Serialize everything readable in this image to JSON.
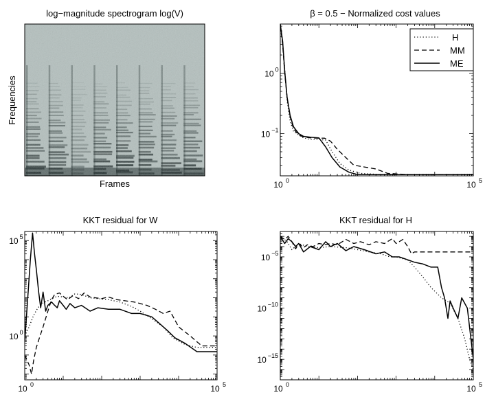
{
  "figure_title": "",
  "chart_data": [
    {
      "type": "heatmap",
      "title": "log−magnitude spectrogram log(V)",
      "xlabel": "Frames",
      "ylabel": "Frequencies",
      "note": "Grey-scale spectrogram; eight note onsets visible as vertical striations with dark low-frequency horizontal harmonic bands",
      "onsets": [
        0,
        1,
        2,
        3,
        4,
        5,
        6,
        7
      ],
      "colors": {
        "background": "#b6c2c0",
        "dark": "#1e2a2a"
      }
    },
    {
      "type": "line",
      "title": "β = 0.5 − Normalized cost values",
      "xscale": "log",
      "yscale": "log",
      "xlim": [
        1,
        100000
      ],
      "ylim": [
        0.02,
        6.5
      ],
      "xticks": [
        {
          "v": 1,
          "label": "10",
          "exp": "0"
        },
        {
          "v": 100000,
          "label": "10",
          "exp": "5"
        }
      ],
      "yticks": [
        {
          "v": 0.1,
          "label": "10",
          "exp": "−1"
        },
        {
          "v": 1,
          "label": "10",
          "exp": "0"
        }
      ],
      "legend": {
        "position": "top-right",
        "entries": [
          "H",
          "MM",
          "ME"
        ]
      },
      "series": [
        {
          "name": "H",
          "style": "dotted",
          "x": [
            1,
            1.15,
            1.3,
            1.5,
            1.8,
            2.2,
            3,
            4,
            6,
            9,
            15,
            22,
            35,
            60,
            120,
            400,
            2000,
            100000
          ],
          "y": [
            6.3,
            3.3,
            1.2,
            0.35,
            0.16,
            0.11,
            0.095,
            0.085,
            0.08,
            0.08,
            0.078,
            0.05,
            0.032,
            0.025,
            0.022,
            0.021,
            0.021,
            0.021
          ]
        },
        {
          "name": "MM",
          "style": "dashed",
          "x": [
            1,
            1.15,
            1.3,
            1.5,
            1.8,
            2.2,
            3,
            4,
            6,
            10,
            14,
            20,
            30,
            50,
            80,
            150,
            300,
            600,
            2000,
            100000
          ],
          "y": [
            6.2,
            3.0,
            1.0,
            0.4,
            0.19,
            0.12,
            0.095,
            0.088,
            0.085,
            0.084,
            0.084,
            0.075,
            0.055,
            0.04,
            0.03,
            0.028,
            0.026,
            0.022,
            0.021,
            0.021
          ]
        },
        {
          "name": "ME",
          "style": "solid",
          "x": [
            1,
            1.15,
            1.3,
            1.5,
            1.8,
            2.2,
            3,
            4,
            6,
            10,
            15,
            22,
            35,
            60,
            100,
            200,
            500,
            2000,
            100000
          ],
          "y": [
            6.5,
            3.4,
            1.1,
            0.4,
            0.2,
            0.13,
            0.1,
            0.09,
            0.087,
            0.085,
            0.06,
            0.04,
            0.028,
            0.023,
            0.021,
            0.021,
            0.021,
            0.021,
            0.021
          ]
        }
      ]
    },
    {
      "type": "line",
      "title": "KKT residual for W",
      "xscale": "log",
      "yscale": "log",
      "xlim": [
        1,
        100000
      ],
      "ylim": [
        0.005,
        300000
      ],
      "xticks": [
        {
          "v": 1,
          "label": "10",
          "exp": "0"
        },
        {
          "v": 100000,
          "label": "10",
          "exp": "5"
        }
      ],
      "yticks": [
        {
          "v": 1,
          "label": "10",
          "exp": "0"
        },
        {
          "v": 100000,
          "label": "10",
          "exp": "5"
        }
      ],
      "series": [
        {
          "name": "H",
          "style": "dotted",
          "x": [
            1,
            1.3,
            1.7,
            2.2,
            3,
            4,
            5,
            7,
            10,
            14,
            20,
            30,
            50,
            80,
            150,
            300,
            600,
            1000,
            2000,
            4000,
            7000,
            15000,
            30000,
            100000
          ],
          "y": [
            1,
            3,
            12,
            30,
            55,
            70,
            90,
            120,
            110,
            100,
            160,
            150,
            100,
            90,
            80,
            60,
            35,
            20,
            8,
            3,
            0.8,
            0.35,
            0.25,
            0.25
          ]
        },
        {
          "name": "MM",
          "style": "dashed",
          "x": [
            1,
            1.3,
            1.5,
            1.7,
            2,
            2.5,
            3,
            4,
            5,
            6,
            8,
            10,
            13,
            18,
            25,
            35,
            50,
            70,
            100,
            150,
            250,
            400,
            700,
            1000,
            1500,
            2500,
            4000,
            6000,
            10000,
            20000,
            40000,
            100000
          ],
          "y": [
            0.1,
            0.03,
            0.01,
            0.05,
            0.25,
            1,
            3,
            20,
            80,
            150,
            180,
            120,
            80,
            130,
            90,
            180,
            110,
            100,
            90,
            110,
            80,
            70,
            60,
            50,
            40,
            25,
            15,
            20,
            3,
            1,
            0.3,
            0.3
          ]
        },
        {
          "name": "ME",
          "style": "solid",
          "x": [
            1,
            1.2,
            1.4,
            1.6,
            1.8,
            2,
            2.3,
            2.6,
            3,
            3.5,
            4,
            5,
            6,
            7,
            8,
            10,
            12,
            15,
            20,
            30,
            50,
            80,
            150,
            300,
            600,
            1000,
            2000,
            3000,
            5000,
            8000,
            15000,
            30000,
            100000
          ],
          "y": [
            0.5,
            100,
            10000,
            250000,
            20000,
            3000,
            200,
            30,
            200,
            20,
            40,
            60,
            40,
            30,
            70,
            40,
            25,
            50,
            30,
            40,
            20,
            30,
            25,
            25,
            15,
            15,
            10,
            5,
            2,
            0.8,
            0.4,
            0.15,
            0.15
          ]
        }
      ]
    },
    {
      "type": "line",
      "title": "KKT residual for H",
      "xscale": "log",
      "yscale": "log",
      "xlim": [
        1,
        100000
      ],
      "ylim": [
        1e-17,
        0.003
      ],
      "xticks": [
        {
          "v": 1,
          "label": "10",
          "exp": "0"
        },
        {
          "v": 100000,
          "label": "10",
          "exp": "5"
        }
      ],
      "yticks": [
        {
          "v": 1e-15,
          "label": "10",
          "exp": "−15"
        },
        {
          "v": 1e-10,
          "label": "10",
          "exp": "−10"
        },
        {
          "v": 1e-05,
          "label": "10",
          "exp": "−5"
        }
      ],
      "series": [
        {
          "name": "H",
          "style": "dotted",
          "x": [
            1,
            1.5,
            2,
            3,
            5,
            10,
            20,
            50,
            100,
            200,
            400,
            700,
            1000,
            2000,
            3000,
            5000,
            8000,
            15000,
            25000,
            40000,
            60000,
            80000,
            100000
          ],
          "y": [
            0.001,
            0.0003,
            5e-05,
            0.0002,
            0.0001,
            8e-05,
            0.0001,
            8e-05,
            5e-05,
            3e-05,
            2e-05,
            1e-05,
            1e-05,
            5e-06,
            1e-06,
            1e-07,
            1e-08,
            1e-09,
            3e-10,
            1e-11,
            1e-13,
            1e-15,
            1e-16
          ]
        },
        {
          "name": "MM",
          "style": "dashed",
          "x": [
            1,
            1.3,
            1.6,
            2,
            2.5,
            3,
            4,
            5,
            7,
            10,
            15,
            20,
            30,
            50,
            80,
            120,
            200,
            300,
            500,
            800,
            1000,
            1500,
            2000,
            2500,
            3000,
            4000,
            6000,
            10000,
            100000
          ],
          "y": [
            0.001,
            0.0005,
            0.001,
            0.0003,
            6e-05,
            0.0002,
            8e-05,
            0.00015,
            0.0001,
            0.0002,
            0.00015,
            0.0002,
            0.00015,
            0.0005,
            0.0002,
            0.0003,
            0.00015,
            0.0003,
            0.0002,
            0.0006,
            0.0002,
            0.0005,
            0.0001,
            2e-05,
            3e-05,
            3e-05,
            3e-05,
            3e-05,
            3e-05
          ]
        },
        {
          "name": "ME",
          "style": "solid",
          "x": [
            1,
            1.3,
            1.6,
            2,
            2.5,
            3,
            4,
            6,
            10,
            15,
            20,
            30,
            50,
            80,
            150,
            300,
            500,
            800,
            1200,
            1800,
            3000,
            5000,
            8000,
            12000,
            15000,
            18000,
            22000,
            25000,
            30000,
            40000,
            50000,
            70000,
            100000
          ],
          "y": [
            0.001,
            0.0002,
            0.0006,
            0.0003,
            0.0001,
            0.0002,
            3e-05,
            0.0001,
            5e-05,
            0.0003,
            0.0001,
            0.0002,
            4e-05,
            0.0001,
            5e-05,
            2e-05,
            3e-05,
            1e-05,
            1e-05,
            6e-06,
            3e-06,
            2e-06,
            1e-06,
            1e-06,
            1e-08,
            1e-09,
            1e-11,
            5e-10,
            1e-10,
            1e-11,
            1e-09,
            1e-10,
            1e-15
          ]
        }
      ]
    }
  ]
}
